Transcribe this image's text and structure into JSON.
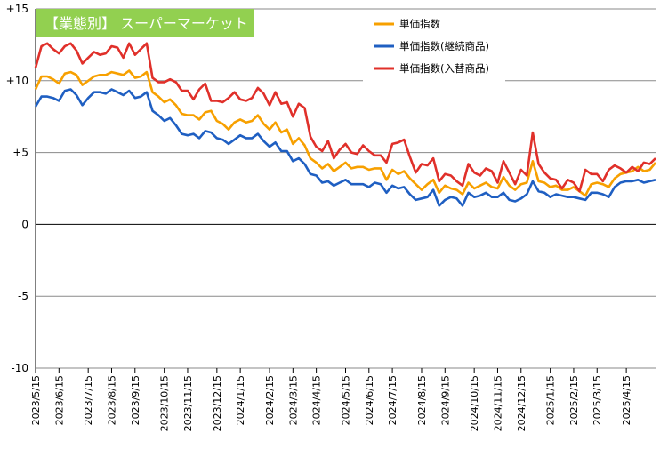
{
  "chart_data": {
    "type": "line",
    "title": "【業態別】 スーパーマーケット",
    "title_bg": "#92D050",
    "ylim": [
      -10,
      15
    ],
    "y_ticks": [
      {
        "value": 15,
        "label": "+15"
      },
      {
        "value": 10,
        "label": "+10"
      },
      {
        "value": 5,
        "label": "+5"
      },
      {
        "value": 0,
        "label": "0"
      },
      {
        "value": -5,
        "label": "-5"
      },
      {
        "value": -10,
        "label": "-10"
      }
    ],
    "grid": "horizontal",
    "legend_position": "top-right",
    "x_tick_labels": [
      "2023/5/15",
      "2023/6/15",
      "2023/7/15",
      "2023/8/15",
      "2023/9/15",
      "2023/10/15",
      "2023/11/15",
      "2023/12/15",
      "2024/1/15",
      "2024/2/15",
      "2024/3/15",
      "2024/4/15",
      "2024/5/15",
      "2024/6/15",
      "2024/7/15",
      "2024/8/15",
      "2024/9/15",
      "2024/10/15",
      "2024/11/15",
      "2024/12/15",
      "2025/1/15",
      "2025/2/15",
      "2025/3/15",
      "2025/4/15"
    ],
    "x_tick_index": [
      0,
      4,
      9,
      13,
      17,
      22,
      26,
      31,
      35,
      40,
      44,
      48,
      53,
      57,
      61,
      66,
      70,
      75,
      79,
      83,
      88,
      92,
      96,
      101
    ],
    "series": [
      {
        "name": "単価指数",
        "color": "#F7A000",
        "values": [
          9.4,
          10.3,
          10.3,
          10.1,
          9.8,
          10.5,
          10.6,
          10.4,
          9.7,
          10.0,
          10.3,
          10.4,
          10.4,
          10.6,
          10.5,
          10.4,
          10.7,
          10.2,
          10.3,
          10.6,
          9.2,
          8.9,
          8.5,
          8.7,
          8.3,
          7.7,
          7.6,
          7.6,
          7.3,
          7.8,
          7.9,
          7.2,
          7.0,
          6.6,
          7.1,
          7.3,
          7.1,
          7.2,
          7.6,
          7.0,
          6.6,
          7.1,
          6.4,
          6.6,
          5.6,
          6.0,
          5.5,
          4.6,
          4.3,
          3.9,
          4.2,
          3.7,
          4.0,
          4.3,
          3.9,
          4.0,
          4.0,
          3.8,
          3.9,
          3.9,
          3.1,
          3.8,
          3.5,
          3.7,
          3.2,
          2.8,
          2.4,
          2.8,
          3.1,
          2.2,
          2.7,
          2.5,
          2.4,
          2.1,
          2.9,
          2.5,
          2.7,
          2.9,
          2.6,
          2.5,
          3.3,
          2.7,
          2.4,
          2.8,
          2.9,
          4.4,
          3.0,
          2.9,
          2.6,
          2.7,
          2.4,
          2.4,
          2.6,
          2.3,
          2.0,
          2.8,
          2.9,
          2.8,
          2.6,
          3.2,
          3.5,
          3.6,
          3.7,
          4.0,
          3.7,
          3.8,
          4.3
        ]
      },
      {
        "name": "単価指数(継続商品)",
        "color": "#1F5FC2",
        "values": [
          8.2,
          8.9,
          8.9,
          8.8,
          8.6,
          9.3,
          9.4,
          9.0,
          8.3,
          8.8,
          9.2,
          9.2,
          9.1,
          9.4,
          9.2,
          9.0,
          9.3,
          8.8,
          8.9,
          9.2,
          7.9,
          7.6,
          7.2,
          7.4,
          6.9,
          6.3,
          6.2,
          6.3,
          6.0,
          6.5,
          6.4,
          6.0,
          5.9,
          5.6,
          5.9,
          6.2,
          6.0,
          6.0,
          6.3,
          5.8,
          5.4,
          5.7,
          5.1,
          5.1,
          4.4,
          4.6,
          4.2,
          3.5,
          3.4,
          2.9,
          3.0,
          2.7,
          2.9,
          3.1,
          2.8,
          2.8,
          2.8,
          2.6,
          2.9,
          2.8,
          2.2,
          2.7,
          2.5,
          2.6,
          2.1,
          1.7,
          1.8,
          1.9,
          2.4,
          1.3,
          1.7,
          1.9,
          1.8,
          1.3,
          2.2,
          1.9,
          2.0,
          2.2,
          1.9,
          1.9,
          2.2,
          1.7,
          1.6,
          1.8,
          2.1,
          3.0,
          2.3,
          2.2,
          1.9,
          2.1,
          2.0,
          1.9,
          1.9,
          1.8,
          1.7,
          2.2,
          2.2,
          2.1,
          1.9,
          2.6,
          2.9,
          3.0,
          3.0,
          3.1,
          2.9,
          3.0,
          3.1
        ]
      },
      {
        "name": "単価指数(入替商品)",
        "color": "#E0302A",
        "values": [
          10.9,
          12.4,
          12.6,
          12.2,
          11.9,
          12.4,
          12.6,
          12.1,
          11.2,
          11.6,
          12.0,
          11.8,
          11.9,
          12.4,
          12.3,
          11.6,
          12.6,
          11.8,
          12.2,
          12.6,
          10.2,
          9.9,
          9.9,
          10.1,
          9.9,
          9.3,
          9.3,
          8.7,
          9.4,
          9.8,
          8.6,
          8.6,
          8.5,
          8.8,
          9.2,
          8.7,
          8.6,
          8.8,
          9.5,
          9.1,
          8.3,
          9.2,
          8.4,
          8.5,
          7.5,
          8.4,
          8.1,
          6.1,
          5.4,
          5.1,
          5.8,
          4.6,
          5.2,
          5.6,
          5.0,
          4.9,
          5.5,
          5.1,
          4.8,
          4.8,
          4.3,
          5.6,
          5.7,
          5.9,
          4.7,
          3.6,
          4.2,
          4.1,
          4.6,
          3.0,
          3.5,
          3.4,
          3.0,
          2.7,
          4.2,
          3.6,
          3.4,
          3.9,
          3.7,
          2.9,
          4.4,
          3.6,
          2.8,
          3.8,
          3.4,
          6.4,
          4.2,
          3.6,
          3.2,
          3.1,
          2.5,
          3.1,
          2.9,
          2.3,
          3.8,
          3.5,
          3.5,
          3.0,
          3.8,
          4.1,
          3.9,
          3.6,
          4.0,
          3.7,
          4.3,
          4.2,
          4.6
        ]
      }
    ]
  }
}
